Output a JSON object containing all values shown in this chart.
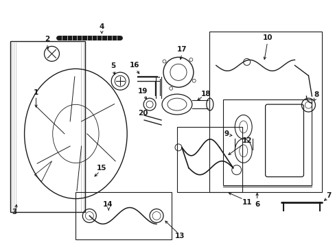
{
  "bg": "#ffffff",
  "lc": "#1a1a1a",
  "fig_w": 4.89,
  "fig_h": 3.6,
  "dpi": 100,
  "fs": 7.5
}
